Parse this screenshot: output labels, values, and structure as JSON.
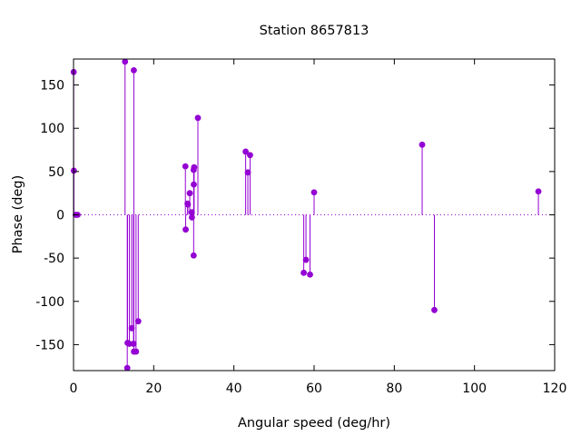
{
  "chart_data": {
    "type": "scatter",
    "subtype": "stem",
    "title": "Station 8657813",
    "xlabel": "Angular speed (deg/hr)",
    "ylabel": "Phase (deg)",
    "xlim": [
      0,
      120
    ],
    "ylim": [
      -180,
      180
    ],
    "xticks": [
      0,
      20,
      40,
      60,
      80,
      100,
      120
    ],
    "yticks": [
      -150,
      -100,
      -50,
      0,
      50,
      100,
      150
    ],
    "grid": false,
    "legend": false,
    "zero_line": "dotted",
    "color": "#9400d3",
    "points": [
      {
        "x": 0.04,
        "y": 165
      },
      {
        "x": 0.08,
        "y": 51
      },
      {
        "x": 0.54,
        "y": 0
      },
      {
        "x": 1.02,
        "y": 0
      },
      {
        "x": 12.85,
        "y": 177
      },
      {
        "x": 13.4,
        "y": -177
      },
      {
        "x": 13.47,
        "y": -148
      },
      {
        "x": 13.94,
        "y": -149
      },
      {
        "x": 14.5,
        "y": -131
      },
      {
        "x": 14.96,
        "y": -149
      },
      {
        "x": 15.04,
        "y": 167
      },
      {
        "x": 15.06,
        "y": -158
      },
      {
        "x": 15.59,
        "y": -158
      },
      {
        "x": 16.14,
        "y": -123
      },
      {
        "x": 27.9,
        "y": 56
      },
      {
        "x": 27.97,
        "y": -17
      },
      {
        "x": 28.44,
        "y": 13
      },
      {
        "x": 28.51,
        "y": 12
      },
      {
        "x": 28.99,
        "y": 25
      },
      {
        "x": 29.46,
        "y": 3
      },
      {
        "x": 29.53,
        "y": -3
      },
      {
        "x": 29.96,
        "y": -47
      },
      {
        "x": 29.96,
        "y": 52
      },
      {
        "x": 30.0,
        "y": 35
      },
      {
        "x": 30.08,
        "y": 55
      },
      {
        "x": 31.02,
        "y": 112
      },
      {
        "x": 42.93,
        "y": 73
      },
      {
        "x": 43.48,
        "y": 49
      },
      {
        "x": 44.03,
        "y": 69
      },
      {
        "x": 57.42,
        "y": -67
      },
      {
        "x": 57.97,
        "y": -52
      },
      {
        "x": 58.98,
        "y": -69
      },
      {
        "x": 60.0,
        "y": 26
      },
      {
        "x": 86.95,
        "y": 81
      },
      {
        "x": 90.0,
        "y": -110
      },
      {
        "x": 115.94,
        "y": 27
      }
    ]
  }
}
